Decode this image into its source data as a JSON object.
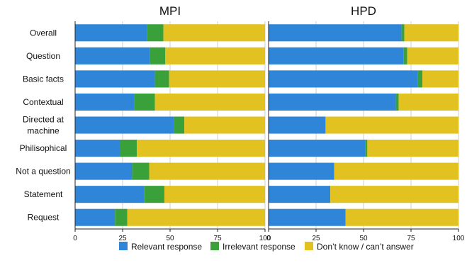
{
  "chart_data": {
    "type": "bar",
    "orientation": "horizontal",
    "stacked": true,
    "grid": true,
    "legend_position": "bottom",
    "categories": [
      "Overall",
      "Question",
      "Basic facts",
      "Contextual",
      "Directed at\nmachine",
      "Philisophical",
      "Not a question",
      "Statement",
      "Request"
    ],
    "series": [
      {
        "name": "Relevant response",
        "color": "#2f86d8"
      },
      {
        "name": "Irrelevant response",
        "color": "#3aa03a"
      },
      {
        "name": "Don’t know / can’t answer",
        "color": "#e2c220"
      }
    ],
    "panels": [
      {
        "title": "MPI",
        "xlim": [
          0,
          100
        ],
        "xticks": [
          0,
          25,
          50,
          75,
          100
        ],
        "values": [
          [
            38,
            8.5,
            53.5
          ],
          [
            39.5,
            8,
            52.5
          ],
          [
            42,
            7.5,
            50.5
          ],
          [
            31,
            11,
            58
          ],
          [
            52,
            5.5,
            42.5
          ],
          [
            23.5,
            9,
            67.5
          ],
          [
            30,
            9,
            61
          ],
          [
            36.5,
            10.5,
            53
          ],
          [
            21,
            6.5,
            72.5
          ]
        ]
      },
      {
        "title": "HPD",
        "xlim": [
          0,
          100
        ],
        "xticks": [
          0,
          25,
          50,
          75,
          100
        ],
        "values": [
          [
            70,
            1.5,
            28.5
          ],
          [
            71,
            2,
            27
          ],
          [
            78.5,
            2.5,
            19
          ],
          [
            67,
            1.5,
            31.5
          ],
          [
            30,
            0,
            70
          ],
          [
            51,
            1,
            48
          ],
          [
            34.5,
            0,
            65.5
          ],
          [
            32.5,
            0,
            67.5
          ],
          [
            40.5,
            0,
            59.5
          ]
        ]
      }
    ]
  }
}
